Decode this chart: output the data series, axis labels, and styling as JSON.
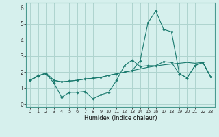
{
  "xlabel": "Humidex (Indice chaleur)",
  "x": [
    0,
    1,
    2,
    3,
    4,
    5,
    6,
    7,
    8,
    9,
    10,
    11,
    12,
    13,
    14,
    15,
    16,
    17,
    18,
    19,
    20,
    21,
    22,
    23
  ],
  "line1": [
    1.5,
    1.8,
    1.9,
    1.35,
    0.45,
    0.75,
    0.75,
    0.8,
    0.35,
    0.6,
    0.75,
    1.5,
    2.4,
    2.75,
    2.35,
    2.4,
    2.4,
    2.65,
    2.6,
    1.9,
    1.65,
    2.4,
    2.6,
    1.7
  ],
  "line2": [
    1.5,
    1.75,
    1.95,
    1.5,
    1.4,
    1.45,
    1.5,
    1.58,
    1.62,
    1.68,
    1.8,
    1.9,
    2.0,
    2.1,
    2.2,
    2.3,
    2.38,
    2.45,
    2.5,
    2.55,
    2.6,
    2.55,
    2.6,
    1.7
  ],
  "line3": [
    1.5,
    1.75,
    1.95,
    1.5,
    1.4,
    1.45,
    1.5,
    1.58,
    1.62,
    1.68,
    1.8,
    1.9,
    2.0,
    2.1,
    2.7,
    5.05,
    5.8,
    4.65,
    4.5,
    1.9,
    1.65,
    2.4,
    2.6,
    1.7
  ],
  "bg_color": "#d6f0ed",
  "grid_color": "#aed4cf",
  "line_color": "#1a7a6e",
  "ylim": [
    -0.15,
    6.3
  ],
  "xlim": [
    -0.5,
    23.5
  ],
  "yticks": [
    0,
    1,
    2,
    3,
    4,
    5,
    6
  ],
  "xticks": [
    0,
    1,
    2,
    3,
    4,
    5,
    6,
    7,
    8,
    9,
    10,
    11,
    12,
    13,
    14,
    15,
    16,
    17,
    18,
    19,
    20,
    21,
    22,
    23
  ]
}
